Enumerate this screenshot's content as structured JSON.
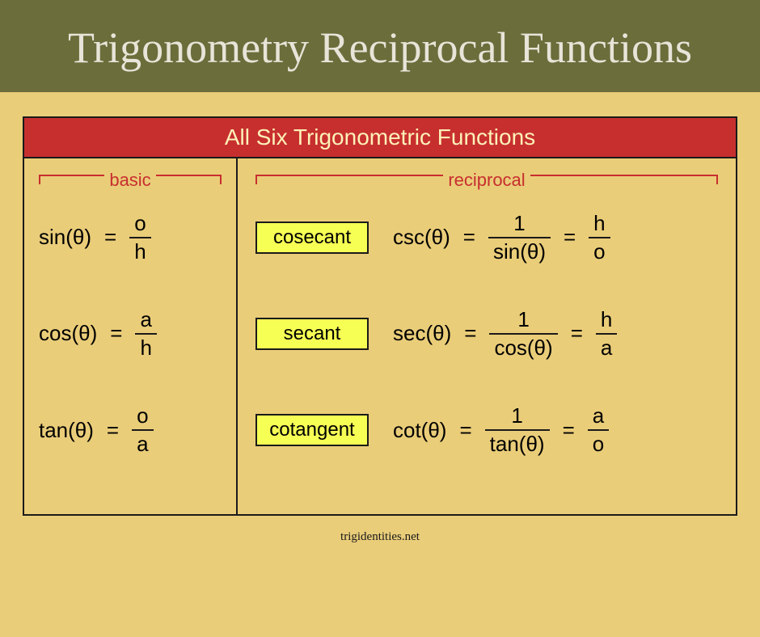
{
  "header": {
    "title": "Trigonometry Reciprocal Functions"
  },
  "panel": {
    "title": "All Six Trigonometric Functions",
    "basic_label": "basic",
    "reciprocal_label": "reciprocal",
    "basic": [
      {
        "lhs": "sin(θ)",
        "num": "o",
        "den": "h"
      },
      {
        "lhs": "cos(θ)",
        "num": "a",
        "den": "h"
      },
      {
        "lhs": "tan(θ)",
        "num": "o",
        "den": "a"
      }
    ],
    "reciprocal": [
      {
        "name": "cosecant",
        "lhs": "csc(θ)",
        "inv_num": "1",
        "inv_den": "sin(θ)",
        "alt_num": "h",
        "alt_den": "o"
      },
      {
        "name": "secant",
        "lhs": "sec(θ)",
        "inv_num": "1",
        "inv_den": "cos(θ)",
        "alt_num": "h",
        "alt_den": "a"
      },
      {
        "name": "cotangent",
        "lhs": "cot(θ)",
        "inv_num": "1",
        "inv_den": "tan(θ)",
        "alt_num": "a",
        "alt_den": "o"
      }
    ]
  },
  "footer": "trigidentities.net",
  "style": {
    "page_bg": "#eacd79",
    "header_bg": "#6b6d3b",
    "header_color": "#e8e4d8",
    "header_fontsize": 54,
    "panel_title_bg": "#c72f2f",
    "panel_title_color": "#fdf1b7",
    "panel_title_fontsize": 28,
    "border_color": "#1a1a1a",
    "bracket_color": "#c72f2f",
    "highlight_bg": "#f6ff54",
    "formula_fontsize": 26,
    "namebox_fontsize": 24,
    "footer_fontsize": 15
  }
}
